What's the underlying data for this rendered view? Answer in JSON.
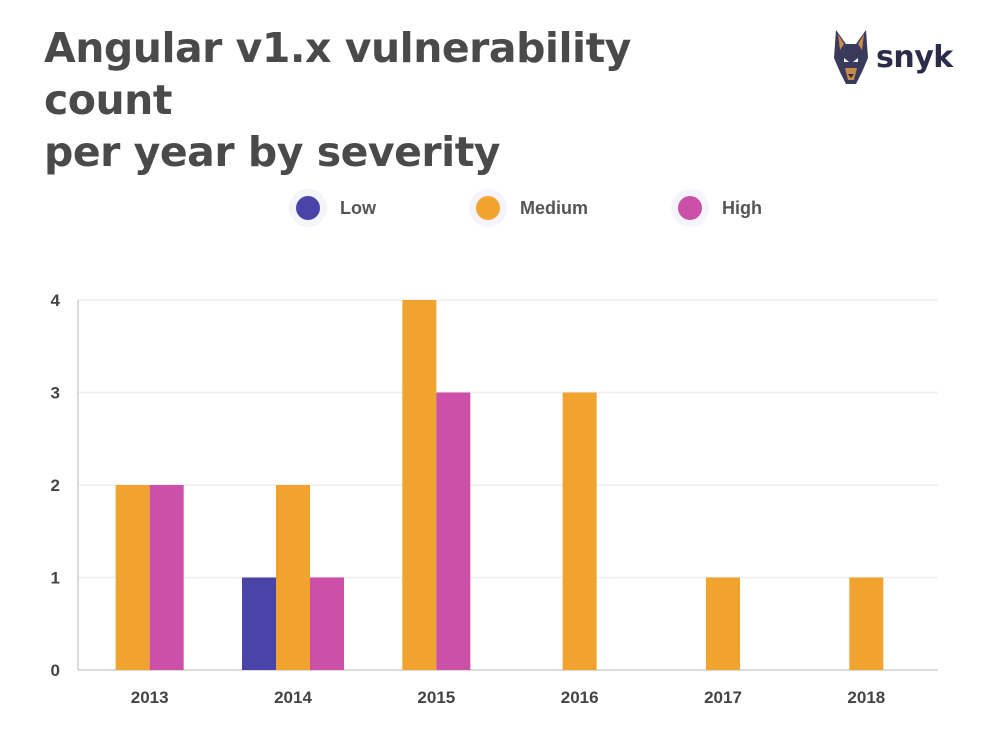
{
  "title_lines": [
    "Angular v1.x vulnerability count",
    "per year by severity"
  ],
  "brand": {
    "name": "snyk",
    "logo_icon": "doberman-dog-icon"
  },
  "colors": {
    "Low": "#4b44a8",
    "Medium": "#f0a32e",
    "High": "#cc4fa8",
    "text": "#444444",
    "grid": "#eeeeee",
    "axis": "#cfcfcf"
  },
  "chart_data": {
    "type": "bar",
    "title": "Angular v1.x vulnerability count per year by severity",
    "xlabel": "",
    "ylabel": "",
    "categories": [
      "2013",
      "2014",
      "2015",
      "2016",
      "2017",
      "2018"
    ],
    "series": [
      {
        "name": "Low",
        "values": [
          0,
          1,
          0,
          0,
          0,
          0
        ]
      },
      {
        "name": "Medium",
        "values": [
          2,
          2,
          4,
          3,
          1,
          1
        ]
      },
      {
        "name": "High",
        "values": [
          2,
          1,
          3,
          0,
          0,
          0
        ]
      }
    ],
    "ylim": [
      0,
      4
    ],
    "yticks": [
      "0",
      "1",
      "2",
      "3",
      "4"
    ],
    "grid": true,
    "legend": "top-center"
  }
}
